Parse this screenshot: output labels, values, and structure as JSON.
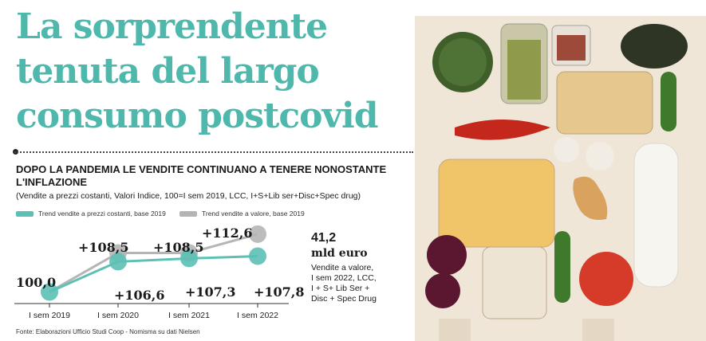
{
  "headline": {
    "line1": "La sorprendente",
    "line2": "tenuta del largo",
    "line3": "consumo postcovid"
  },
  "subtitle": "DOPO LA PANDEMIA LE VENDITE CONTINUANO A TENERE NONOSTANTE L'INFLAZIONE",
  "note": "(Vendite a prezzi costanti, Valori Indice, 100=I sem 2019, LCC, I+S+Lib ser+Disc+Spec drug)",
  "source": "Fonte: Elaborazioni Ufficio Studi Coop - Nomisma su dati Nielsen",
  "highlight": {
    "value": "41,2",
    "unit": "mld euro",
    "desc1": "Vendite a valore,",
    "desc2": "I sem 2022, LCC,",
    "desc3": "I + S+ Lib Ser +",
    "desc4": "Disc + Spec Drug"
  },
  "colors": {
    "teal": "#5cc0b5",
    "grey": "#b5b5b5",
    "headline": "#4fb8ad"
  },
  "chart_data": {
    "type": "line",
    "categories": [
      "I sem 2019",
      "I sem 2020",
      "I sem 2021",
      "I sem 2022"
    ],
    "series": [
      {
        "name": "Trend vendite a prezzi costanti, base 2019",
        "color": "#5cc0b5",
        "values": [
          100.0,
          106.6,
          107.3,
          107.8
        ],
        "labels": [
          "100,0",
          "+106,6",
          "+107,3",
          "+107,8"
        ]
      },
      {
        "name": "Trend vendite a valore, base 2019",
        "color": "#b5b5b5",
        "values": [
          100.0,
          108.5,
          108.5,
          112.6
        ],
        "labels": [
          "100,0",
          "+108,5",
          "+108,5",
          "+112,6"
        ]
      }
    ],
    "ylim": [
      98,
      115
    ],
    "legend_position": "top"
  }
}
